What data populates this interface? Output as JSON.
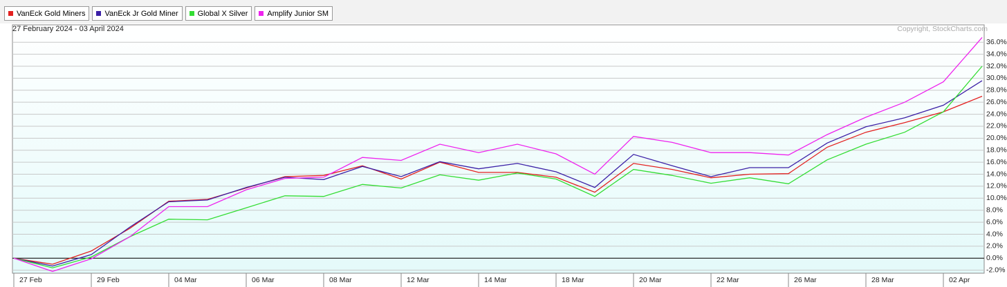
{
  "chart_data": {
    "type": "line",
    "subtitle": "27 February 2024 - 03 April 2024",
    "annotation": "Copyright, StockCharts.com",
    "categories": [
      "27 Feb",
      null,
      "29 Feb",
      null,
      "04 Mar",
      null,
      "06 Mar",
      null,
      "08 Mar",
      null,
      "12 Mar",
      null,
      "14 Mar",
      null,
      "18 Mar",
      null,
      "20 Mar",
      null,
      "22 Mar",
      null,
      "26 Mar",
      null,
      "28 Mar",
      null,
      "02 Apr",
      null
    ],
    "series": [
      {
        "name": "VanEck Gold Miners",
        "color": "#e3201f",
        "values": [
          0,
          -1.0,
          1.2,
          5.0,
          9.5,
          9.8,
          11.7,
          13.6,
          13.8,
          15.4,
          13.2,
          16.0,
          14.3,
          14.3,
          13.5,
          11.0,
          15.8,
          14.8,
          13.4,
          14.0,
          14.1,
          18.5,
          21.0,
          22.6,
          24.4,
          27.0
        ]
      },
      {
        "name": "VanEck Jr Gold Miner",
        "color": "#3b1fa6",
        "values": [
          0,
          -1.3,
          0.6,
          5.2,
          9.4,
          9.7,
          11.8,
          13.5,
          13.1,
          15.3,
          13.6,
          16.1,
          14.9,
          15.8,
          14.4,
          11.8,
          17.3,
          15.4,
          13.6,
          15.1,
          15.1,
          19.2,
          21.9,
          23.4,
          25.5,
          29.6
        ]
      },
      {
        "name": "Global X Silver",
        "color": "#33dd33",
        "values": [
          0,
          -1.6,
          0.2,
          3.6,
          6.5,
          6.4,
          8.4,
          10.4,
          10.3,
          12.3,
          11.7,
          13.9,
          13.0,
          14.2,
          13.2,
          10.3,
          14.8,
          13.8,
          12.5,
          13.4,
          12.4,
          16.4,
          19.0,
          21.0,
          24.4,
          32.0
        ]
      },
      {
        "name": "Amplify Junior SM",
        "color": "#ee22ee",
        "values": [
          0,
          -2.2,
          -0.1,
          3.6,
          8.6,
          8.6,
          11.4,
          13.3,
          13.5,
          16.8,
          16.3,
          19.0,
          17.6,
          19.0,
          17.4,
          14.0,
          20.3,
          19.3,
          17.6,
          17.6,
          17.2,
          20.6,
          23.5,
          26.0,
          29.4,
          36.8
        ]
      }
    ],
    "ylim": [
      -2.5,
      38.9
    ],
    "yticks": [
      {
        "value": -2,
        "label": "-2.0%"
      },
      {
        "value": 0,
        "label": "0.0%"
      },
      {
        "value": 2,
        "label": "2.0%"
      },
      {
        "value": 4,
        "label": "4.0%"
      },
      {
        "value": 6,
        "label": "6.0%"
      },
      {
        "value": 8,
        "label": "8.0%"
      },
      {
        "value": 10,
        "label": "10.0%"
      },
      {
        "value": 12,
        "label": "12.0%"
      },
      {
        "value": 14,
        "label": "14.0%"
      },
      {
        "value": 16,
        "label": "16.0%"
      },
      {
        "value": 18,
        "label": "18.0%"
      },
      {
        "value": 20,
        "label": "20.0%"
      },
      {
        "value": 22,
        "label": "22.0%"
      },
      {
        "value": 24,
        "label": "24.0%"
      },
      {
        "value": 26,
        "label": "26.0%"
      },
      {
        "value": 28,
        "label": "28.0%"
      },
      {
        "value": 30,
        "label": "30.0%"
      },
      {
        "value": 32,
        "label": "32.0%"
      },
      {
        "value": 34,
        "label": "34.0%"
      },
      {
        "value": 36,
        "label": "36.0%"
      }
    ],
    "grid": true,
    "baseline": 0
  }
}
